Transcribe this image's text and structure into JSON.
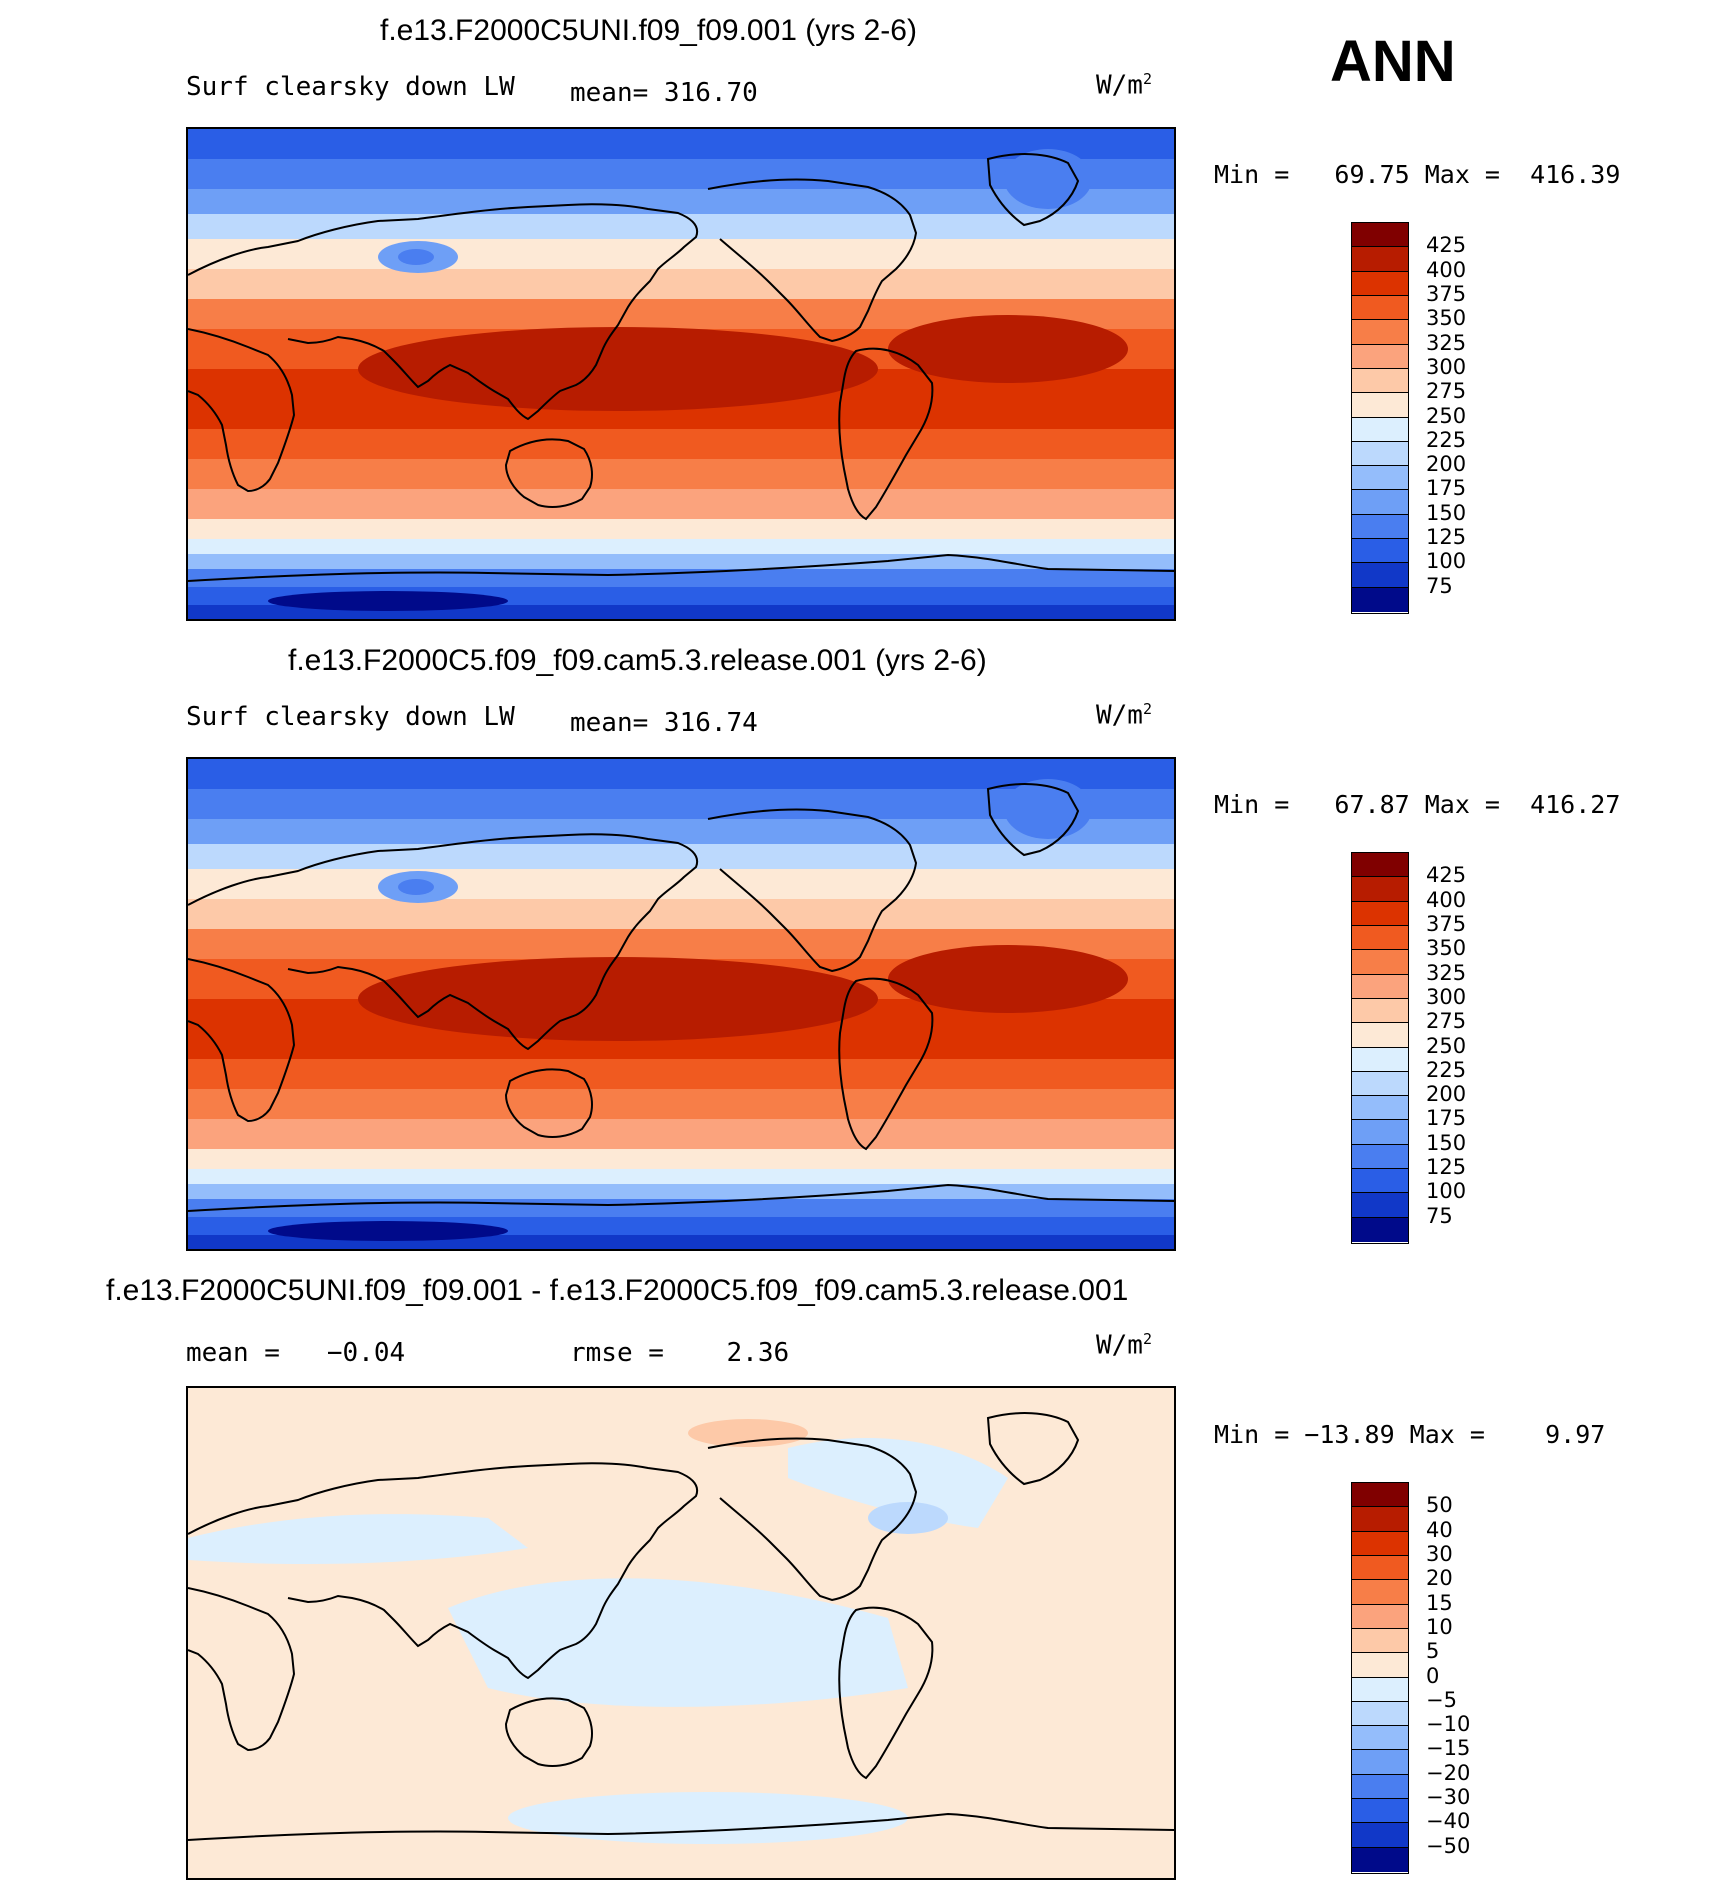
{
  "season": "ANN",
  "panels": [
    {
      "id": "top",
      "title": "f.e13.F2000C5UNI.f09_f09.001 (yrs 2-6)",
      "variable": "Surf clearsky down LW",
      "mean_label": "mean= 316.70",
      "units_base": "W/m",
      "units_sup": "2",
      "minmax": "Min =   69.75 Max =  416.39",
      "colorbar": {
        "labels": [
          "425",
          "400",
          "375",
          "350",
          "325",
          "300",
          "275",
          "250",
          "225",
          "200",
          "175",
          "150",
          "125",
          "100",
          "75"
        ],
        "colors": [
          "#800000",
          "#b71c00",
          "#dc3300",
          "#f05a20",
          "#f77e48",
          "#fba37d",
          "#fdc9a8",
          "#fde9d6",
          "#dceffe",
          "#bcd9fd",
          "#94bdfb",
          "#6e9ff6",
          "#4a7ef0",
          "#2a5ee6",
          "#1138c8",
          "#000a8a"
        ]
      },
      "field": "absolute"
    },
    {
      "id": "middle",
      "title": "f.e13.F2000C5.f09_f09.cam5.3.release.001 (yrs 2-6)",
      "variable": "Surf clearsky down LW",
      "mean_label": "mean= 316.74",
      "units_base": "W/m",
      "units_sup": "2",
      "minmax": "Min =   67.87 Max =  416.27",
      "colorbar": {
        "labels": [
          "425",
          "400",
          "375",
          "350",
          "325",
          "300",
          "275",
          "250",
          "225",
          "200",
          "175",
          "150",
          "125",
          "100",
          "75"
        ],
        "colors": [
          "#800000",
          "#b71c00",
          "#dc3300",
          "#f05a20",
          "#f77e48",
          "#fba37d",
          "#fdc9a8",
          "#fde9d6",
          "#dceffe",
          "#bcd9fd",
          "#94bdfb",
          "#6e9ff6",
          "#4a7ef0",
          "#2a5ee6",
          "#1138c8",
          "#000a8a"
        ]
      },
      "field": "absolute"
    },
    {
      "id": "diff",
      "title": "f.e13.F2000C5UNI.f09_f09.001 - f.e13.F2000C5.f09_f09.cam5.3.release.001",
      "mean_label": "mean =   −0.04",
      "rmse_label": "rmse =    2.36",
      "units_base": "W/m",
      "units_sup": "2",
      "minmax": "Min = −13.89 Max =    9.97",
      "colorbar": {
        "labels": [
          "50",
          "40",
          "30",
          "20",
          "15",
          "10",
          "5",
          "0",
          "−5",
          "−10",
          "−15",
          "−20",
          "−30",
          "−40",
          "−50"
        ],
        "colors": [
          "#800000",
          "#b71c00",
          "#dc3300",
          "#f05a20",
          "#f77e48",
          "#fba37d",
          "#fdc9a8",
          "#fde9d6",
          "#dceffe",
          "#bcd9fd",
          "#94bdfb",
          "#6e9ff6",
          "#4a7ef0",
          "#2a5ee6",
          "#1138c8",
          "#000a8a"
        ]
      },
      "field": "difference"
    }
  ]
}
